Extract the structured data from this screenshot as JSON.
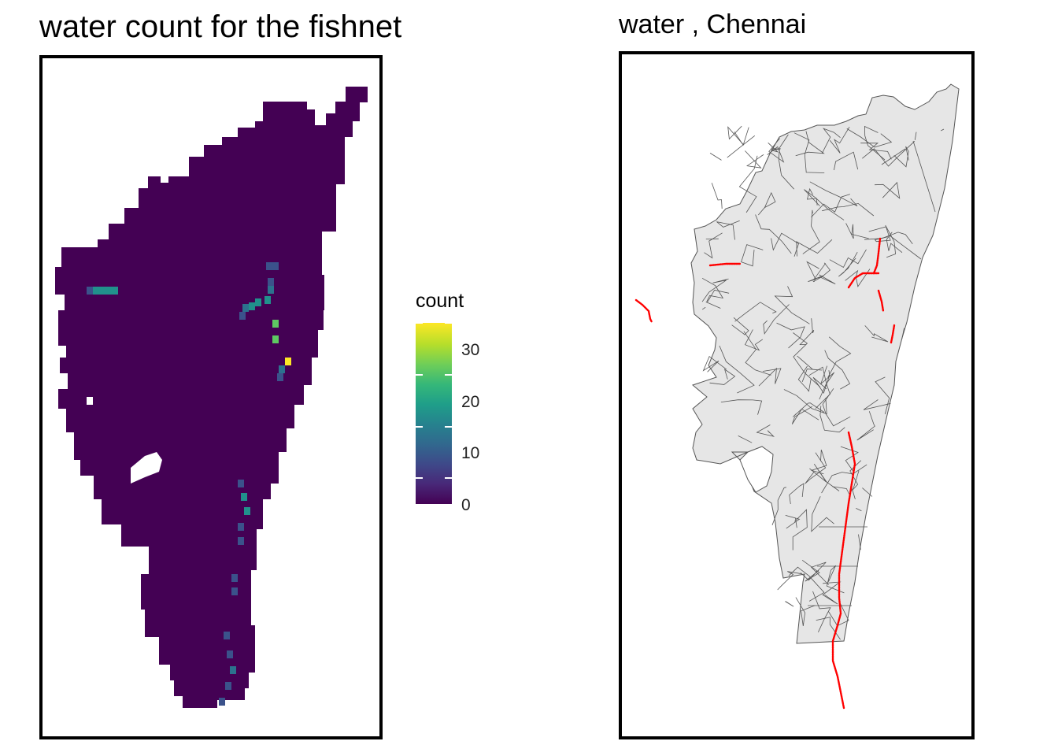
{
  "left_map": {
    "title": "water count for the fishnet",
    "fill_color": "#440154",
    "legend": {
      "title": "count",
      "ticks": [
        {
          "value": 30,
          "label": "30"
        },
        {
          "value": 20,
          "label": "20"
        },
        {
          "value": 10,
          "label": "10"
        },
        {
          "value": 0,
          "label": "0"
        }
      ],
      "range": [
        0,
        35
      ]
    },
    "water_cell_colors": {
      "low": "#3b528b",
      "mid": "#2c728e",
      "teal": "#21918c",
      "green": "#5ec962",
      "yellow": "#fde725"
    }
  },
  "right_map": {
    "title": "water , Chennai",
    "ward_fill": "#e6e6e6",
    "ward_stroke": "#555555",
    "water_color": "#ff0000"
  }
}
